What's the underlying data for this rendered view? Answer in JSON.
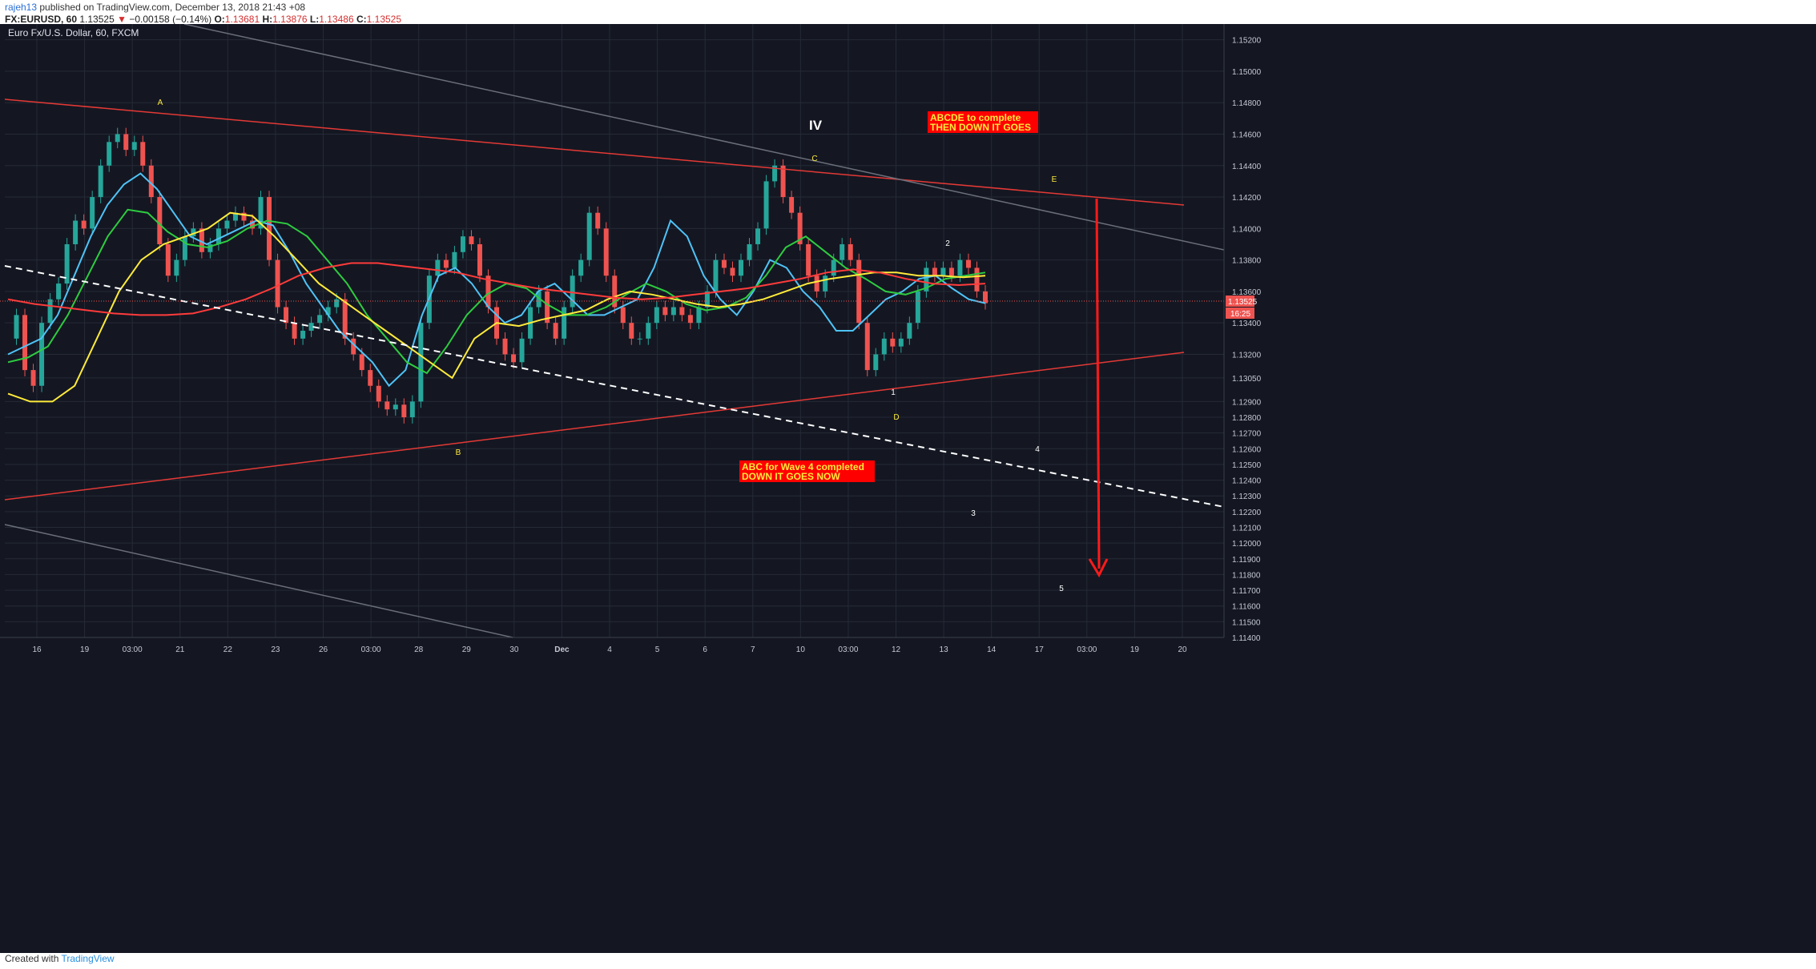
{
  "header": {
    "user": "rajeh13",
    "published": "published on TradingView.com, December 13, 2018 21:43 +08",
    "symbol": "FX:EURUSD, 60",
    "last": "1.13525",
    "down_arrow": "▼",
    "change": "−0.00158 (−0.14%)",
    "o_label": "O:",
    "o_value": "1.13681",
    "h_label": "H:",
    "h_value": "1.13876",
    "l_label": "L:",
    "l_value": "1.13486",
    "c_label": "C:",
    "c_value": "1.13525"
  },
  "footer": {
    "created": "Created with",
    "brand": "TradingView"
  },
  "chart_data": {
    "type": "line",
    "title": "Euro Fx/U.S. Dollar, 60, FXCM",
    "ylim": [
      1.114,
      1.153
    ],
    "y_ticks": [
      "1.15200",
      "1.15000",
      "1.14800",
      "1.14600",
      "1.14400",
      "1.14200",
      "1.14000",
      "1.13800",
      "1.13600",
      "1.13400",
      "1.13200",
      "1.13050",
      "1.12900",
      "1.12800",
      "1.12700",
      "1.12600",
      "1.12500",
      "1.12400",
      "1.12300",
      "1.12200",
      "1.12100",
      "1.12000",
      "1.11900",
      "1.11800",
      "1.11700",
      "1.11600",
      "1.11500",
      "1.11400"
    ],
    "x_ticks": [
      "16",
      "19",
      "03:00",
      "21",
      "22",
      "23",
      "26",
      "03:00",
      "28",
      "29",
      "30",
      "Dec",
      "4",
      "5",
      "6",
      "7",
      "10",
      "03:00",
      "12",
      "13",
      "14",
      "17",
      "03:00",
      "19",
      "20"
    ],
    "price_badge": "1.13525",
    "timer_badge": "16:25",
    "series": [
      {
        "name": "price",
        "color": "#26a69a",
        "values": [
          1.133,
          1.1345,
          1.131,
          1.13,
          1.134,
          1.1355,
          1.1365,
          1.139,
          1.1405,
          1.14,
          1.142,
          1.144,
          1.1455,
          1.146,
          1.145,
          1.1455,
          1.144,
          1.142,
          1.139,
          1.137,
          1.138,
          1.1395,
          1.14,
          1.1385,
          1.139,
          1.14,
          1.1405,
          1.141,
          1.1405,
          1.14,
          1.142,
          1.138,
          1.135,
          1.134,
          1.133,
          1.1335,
          1.134,
          1.1345,
          1.135,
          1.1355,
          1.133,
          1.132,
          1.131,
          1.13,
          1.129,
          1.1285,
          1.1288,
          1.128,
          1.129,
          1.134,
          1.137,
          1.138,
          1.1375,
          1.1385,
          1.1395,
          1.139,
          1.137,
          1.135,
          1.133,
          1.132,
          1.1315,
          1.133,
          1.135,
          1.136,
          1.134,
          1.133,
          1.135,
          1.137,
          1.138,
          1.141,
          1.14,
          1.137,
          1.135,
          1.134,
          1.133,
          1.133,
          1.134,
          1.135,
          1.1345,
          1.135,
          1.1345,
          1.134,
          1.135,
          1.136,
          1.138,
          1.1375,
          1.137,
          1.138,
          1.139,
          1.14,
          1.143,
          1.144,
          1.142,
          1.141,
          1.139,
          1.137,
          1.136,
          1.137,
          1.138,
          1.139,
          1.138,
          1.134,
          1.131,
          1.132,
          1.133,
          1.1325,
          1.133,
          1.134,
          1.136,
          1.1375,
          1.137,
          1.1375,
          1.137,
          1.138,
          1.1375,
          1.136,
          1.13525
        ]
      },
      {
        "name": "ema-cyan",
        "color": "#4fc3f7",
        "values": [
          1.132,
          1.1325,
          1.133,
          1.1345,
          1.137,
          1.1395,
          1.1415,
          1.1428,
          1.1435,
          1.1425,
          1.141,
          1.1395,
          1.139,
          1.1395,
          1.14,
          1.1405,
          1.1402,
          1.1385,
          1.1365,
          1.135,
          1.1335,
          1.1325,
          1.1315,
          1.13,
          1.131,
          1.1345,
          1.137,
          1.1375,
          1.1365,
          1.135,
          1.134,
          1.1345,
          1.136,
          1.1365,
          1.1355,
          1.1345,
          1.1345,
          1.135,
          1.1355,
          1.1375,
          1.1405,
          1.1395,
          1.137,
          1.1355,
          1.1345,
          1.136,
          1.138,
          1.1375,
          1.136,
          1.135,
          1.1335,
          1.1335,
          1.1345,
          1.1355,
          1.136,
          1.1368,
          1.137,
          1.1362,
          1.1355,
          1.13525
        ]
      },
      {
        "name": "ema-green",
        "color": "#2ecc40",
        "values": [
          1.1315,
          1.1318,
          1.1325,
          1.1345,
          1.137,
          1.1395,
          1.1412,
          1.141,
          1.1398,
          1.139,
          1.1388,
          1.1392,
          1.14,
          1.1405,
          1.1403,
          1.1395,
          1.138,
          1.1365,
          1.1345,
          1.133,
          1.1315,
          1.1308,
          1.1325,
          1.1345,
          1.1358,
          1.1365,
          1.1362,
          1.1352,
          1.1345,
          1.1345,
          1.135,
          1.1358,
          1.1365,
          1.136,
          1.1352,
          1.1348,
          1.135,
          1.1356,
          1.137,
          1.1388,
          1.1395,
          1.1385,
          1.1375,
          1.1368,
          1.136,
          1.1358,
          1.1362,
          1.1368,
          1.137,
          1.1372
        ]
      },
      {
        "name": "ema-yellow",
        "color": "#ffeb3b",
        "values": [
          1.1295,
          1.129,
          1.129,
          1.13,
          1.133,
          1.136,
          1.138,
          1.139,
          1.1395,
          1.14,
          1.141,
          1.1408,
          1.1395,
          1.138,
          1.1365,
          1.1355,
          1.1345,
          1.1335,
          1.1325,
          1.1315,
          1.1305,
          1.133,
          1.134,
          1.1338,
          1.1342,
          1.1345,
          1.1348,
          1.1355,
          1.136,
          1.1358,
          1.1355,
          1.1352,
          1.135,
          1.1352,
          1.1355,
          1.136,
          1.1365,
          1.1368,
          1.137,
          1.1372,
          1.1372,
          1.137,
          1.137,
          1.1369,
          1.137
        ]
      },
      {
        "name": "sma-red",
        "color": "#ff3b3b",
        "values": [
          1.1355,
          1.1352,
          1.135,
          1.1348,
          1.1346,
          1.1345,
          1.1345,
          1.1346,
          1.135,
          1.1355,
          1.1362,
          1.137,
          1.1375,
          1.1378,
          1.1378,
          1.1376,
          1.1374,
          1.1372,
          1.1368,
          1.1365,
          1.1362,
          1.136,
          1.1358,
          1.1356,
          1.1355,
          1.1356,
          1.1358,
          1.136,
          1.1362,
          1.1365,
          1.1368,
          1.1372,
          1.1374,
          1.1372,
          1.1368,
          1.1365,
          1.1364,
          1.1365
        ]
      }
    ],
    "annotations": {
      "wave_A": "A",
      "wave_B": "B",
      "wave_C": "C",
      "wave_D": "D",
      "wave_E": "E",
      "wave_IV": "IV",
      "count_1": "1",
      "count_2": "2",
      "count_3": "3",
      "count_4": "4",
      "count_5": "5",
      "note_top_line1": "ABCDE to complete",
      "note_top_line2": "THEN DOWN IT GOES",
      "note_mid_line1": "ABC for Wave 4 completed",
      "note_mid_line2": "DOWN IT GOES NOW"
    }
  },
  "colors": {
    "background": "#141722",
    "grid": "#252a36",
    "axis_text": "#c5c9d3",
    "candle_up": "#26a69a",
    "candle_down": "#ef5350",
    "note_bg": "#ff0000",
    "note_text": "#ffeb3b"
  }
}
